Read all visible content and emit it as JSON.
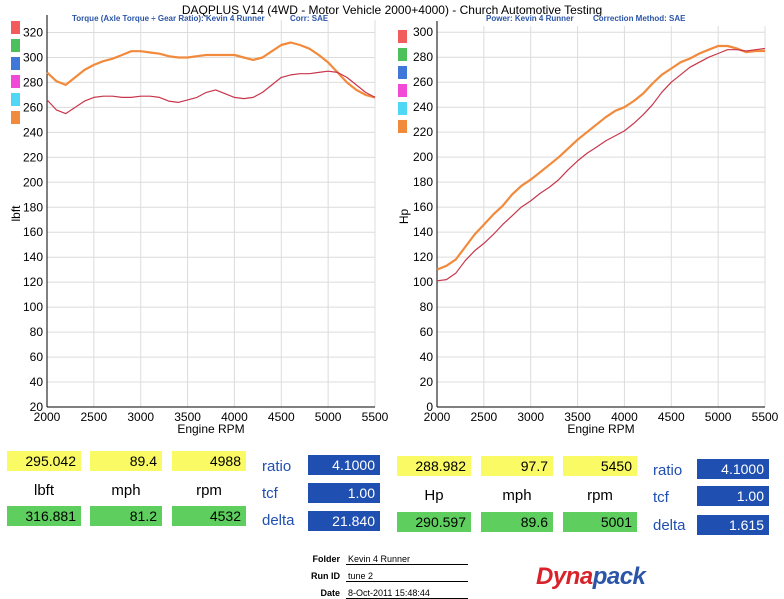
{
  "title": "DAQPLUS V14 (4WD - Motor Vehicle 2000+4000) - Church Automotive Testing",
  "left_subtitle": "Torque (Axle Torque ÷ Gear Ratio): Kevin 4 Runner",
  "left_corr": "Corr: SAE",
  "right_subtitle": "Power: Kevin 4 Runner",
  "right_corr": "Correction Method: SAE",
  "colors": {
    "orange": "#f28a3c",
    "crimson": "#c8364b",
    "yellow": "#fafa64",
    "green": "#5ecf5e",
    "blue": "#1f4fb0",
    "legend": [
      "#f25c5c",
      "#4cc05a",
      "#3f78d8",
      "#f04ad6",
      "#4fd8f5",
      "#f28a3c"
    ]
  },
  "chart_data": [
    {
      "type": "line",
      "title": "Torque (Axle Torque ÷ Gear Ratio): Kevin 4 Runner",
      "xlabel": "Engine RPM",
      "ylabel": "lbft",
      "xlim": [
        2000,
        5500
      ],
      "ylim": [
        20,
        330
      ],
      "xticks": [
        "2000",
        "2500",
        "3000",
        "3500",
        "4000",
        "4500",
        "5000",
        "5500"
      ],
      "yticks": [
        "20",
        "40",
        "60",
        "80",
        "100",
        "120",
        "140",
        "160",
        "180",
        "200",
        "220",
        "240",
        "260",
        "280",
        "300",
        "320"
      ],
      "grid": true,
      "series": [
        {
          "color": "#f28a3c",
          "x": [
            2000,
            2100,
            2200,
            2300,
            2400,
            2500,
            2600,
            2700,
            2800,
            2900,
            3000,
            3100,
            3200,
            3300,
            3400,
            3500,
            3600,
            3700,
            3800,
            3900,
            4000,
            4100,
            4200,
            4300,
            4400,
            4500,
            4600,
            4700,
            4800,
            4900,
            5000,
            5100,
            5200,
            5300,
            5400,
            5500
          ],
          "y": [
            288,
            281,
            278,
            284,
            290,
            294,
            297,
            299,
            302,
            305,
            305,
            304,
            303,
            301,
            300,
            300,
            301,
            302,
            302,
            302,
            302,
            300,
            298,
            300,
            305,
            310,
            312,
            310,
            307,
            302,
            296,
            288,
            280,
            274,
            270,
            268
          ]
        },
        {
          "color": "#c8364b",
          "x": [
            2000,
            2100,
            2200,
            2300,
            2400,
            2500,
            2600,
            2700,
            2800,
            2900,
            3000,
            3100,
            3200,
            3300,
            3400,
            3500,
            3600,
            3700,
            3800,
            3900,
            4000,
            4100,
            4200,
            4300,
            4400,
            4500,
            4600,
            4700,
            4800,
            4900,
            5000,
            5100,
            5200,
            5300,
            5400,
            5500
          ],
          "y": [
            266,
            258,
            255,
            260,
            265,
            268,
            269,
            269,
            268,
            268,
            269,
            269,
            268,
            265,
            264,
            266,
            268,
            272,
            274,
            271,
            268,
            267,
            268,
            272,
            278,
            284,
            286,
            287,
            287,
            288,
            289,
            288,
            284,
            278,
            272,
            268
          ]
        }
      ],
      "legend_colors": [
        "#f25c5c",
        "#4cc05a",
        "#3f78d8",
        "#f04ad6",
        "#4fd8f5",
        "#f28a3c"
      ]
    },
    {
      "type": "line",
      "title": "Power: Kevin 4 Runner",
      "xlabel": "Engine RPM",
      "ylabel": "Hp",
      "xlim": [
        2000,
        5500
      ],
      "ylim": [
        0,
        305
      ],
      "xticks": [
        "2000",
        "2500",
        "3000",
        "3500",
        "4000",
        "4500",
        "5000",
        "5500"
      ],
      "yticks": [
        "0",
        "20",
        "40",
        "60",
        "80",
        "100",
        "120",
        "140",
        "160",
        "180",
        "200",
        "220",
        "240",
        "260",
        "280",
        "300"
      ],
      "grid": true,
      "series": [
        {
          "color": "#f28a3c",
          "x": [
            2000,
            2100,
            2200,
            2300,
            2400,
            2500,
            2600,
            2700,
            2800,
            2900,
            3000,
            3100,
            3200,
            3300,
            3400,
            3500,
            3600,
            3700,
            3800,
            3900,
            4000,
            4100,
            4200,
            4300,
            4400,
            4500,
            4600,
            4700,
            4800,
            4900,
            5000,
            5100,
            5200,
            5300,
            5400,
            5500
          ],
          "y": [
            110,
            113,
            118,
            128,
            138,
            146,
            154,
            161,
            170,
            177,
            182,
            188,
            194,
            200,
            207,
            214,
            220,
            226,
            232,
            237,
            240,
            245,
            251,
            259,
            266,
            271,
            276,
            279,
            283,
            286,
            289,
            289,
            287,
            284,
            285,
            285
          ]
        },
        {
          "color": "#c8364b",
          "x": [
            2000,
            2100,
            2200,
            2300,
            2400,
            2500,
            2600,
            2700,
            2800,
            2900,
            3000,
            3100,
            3200,
            3300,
            3400,
            3500,
            3600,
            3700,
            3800,
            3900,
            4000,
            4100,
            4200,
            4300,
            4400,
            4500,
            4600,
            4700,
            4800,
            4900,
            5000,
            5100,
            5200,
            5300,
            5400,
            5500
          ],
          "y": [
            101,
            102,
            107,
            117,
            125,
            131,
            138,
            146,
            153,
            160,
            165,
            171,
            176,
            182,
            190,
            197,
            203,
            208,
            213,
            217,
            221,
            227,
            234,
            242,
            252,
            260,
            266,
            272,
            276,
            280,
            283,
            286,
            286,
            285,
            286,
            287
          ]
        }
      ],
      "legend_colors": [
        "#f25c5c",
        "#4cc05a",
        "#3f78d8",
        "#f04ad6",
        "#4fd8f5",
        "#f28a3c"
      ]
    }
  ],
  "readouts": {
    "left": {
      "cursor1": [
        "295.042",
        "89.4",
        "4988"
      ],
      "units": [
        "lbft",
        "mph",
        "rpm"
      ],
      "cursor2": [
        "316.881",
        "81.2",
        "4532"
      ]
    },
    "right": {
      "cursor1": [
        "288.982",
        "97.7",
        "5450"
      ],
      "units": [
        "Hp",
        "mph",
        "rpm"
      ],
      "cursor2": [
        "290.597",
        "89.6",
        "5001"
      ]
    },
    "left_params": [
      {
        "label": "ratio",
        "value": "4.1000"
      },
      {
        "label": "tcf",
        "value": "1.00"
      },
      {
        "label": "delta",
        "value": "21.840"
      }
    ],
    "right_params": [
      {
        "label": "ratio",
        "value": "4.1000"
      },
      {
        "label": "tcf",
        "value": "1.00"
      },
      {
        "label": "delta",
        "value": "1.615"
      }
    ]
  },
  "footer": {
    "folder_label": "Folder",
    "folder_value": "Kevin 4 Runner",
    "run_label": "Run ID",
    "run_value": "tune 2",
    "date_label": "Date",
    "date_value": "8-Oct-2011 15:48:44"
  },
  "logo": {
    "part1": "Dyna",
    "part2": "pack"
  }
}
